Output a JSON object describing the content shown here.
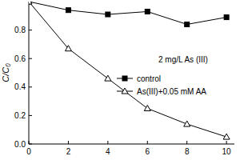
{
  "chart_data": {
    "type": "line",
    "y_label": "C/C₀",
    "annotation": "2 mg/L As (III)",
    "x": [
      0,
      2,
      4,
      6,
      8,
      10
    ],
    "series": [
      {
        "name": "control",
        "color": "#000000",
        "marker": "square",
        "values": [
          1.0,
          0.94,
          0.91,
          0.93,
          0.84,
          0.89
        ]
      },
      {
        "name": "As(III)+0.05 mM AA",
        "color": "#000000",
        "marker": "triangle-open",
        "values": [
          1.0,
          0.67,
          0.46,
          0.25,
          0.14,
          0.05
        ]
      }
    ],
    "xlim": [
      0,
      10.4
    ],
    "xticks": [
      0,
      2,
      4,
      6,
      8,
      10
    ],
    "ylim": [
      0,
      1.0
    ],
    "yticks": [
      {
        "value": 0,
        "label": "0.0"
      },
      {
        "value": 0.2,
        "label": "0.2"
      },
      {
        "value": 0.4,
        "label": "0.4"
      },
      {
        "value": 0.6,
        "label": "0.6"
      },
      {
        "value": 0.8,
        "label": "0.8"
      }
    ],
    "legend": "right",
    "grid": false
  }
}
